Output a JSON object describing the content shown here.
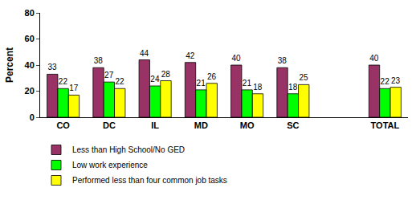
{
  "chart_data": {
    "type": "bar",
    "categories": [
      "CO",
      "DC",
      "IL",
      "MD",
      "MO",
      "SC",
      null,
      "TOTAL"
    ],
    "series": [
      {
        "name": "Less than High School/No GED",
        "color": "#993366",
        "values": [
          33,
          38,
          44,
          42,
          40,
          38,
          null,
          40
        ]
      },
      {
        "name": "Low work experience",
        "color": "#00ff00",
        "values": [
          22,
          27,
          24,
          21,
          21,
          18,
          null,
          22
        ]
      },
      {
        "name": "Performed less than four common job tasks",
        "color": "#ffff00",
        "values": [
          17,
          22,
          28,
          26,
          18,
          25,
          null,
          23
        ]
      }
    ],
    "y_label": "Percent",
    "ylim": [
      0,
      80
    ],
    "yticks": [
      0,
      20,
      40,
      60,
      80
    ],
    "grid": false,
    "legend": "bottom",
    "data_labels": true
  }
}
